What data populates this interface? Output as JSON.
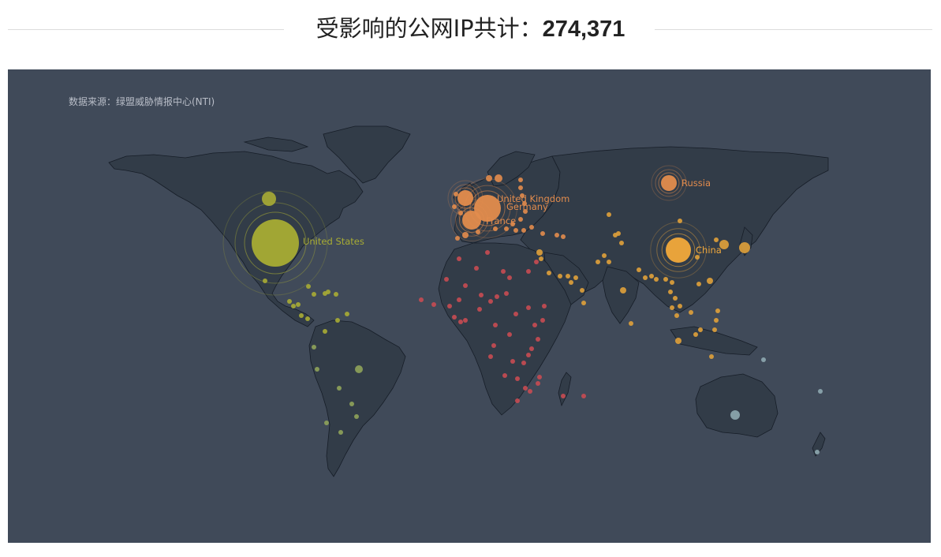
{
  "header": {
    "label": "受影响的公网IP共计：",
    "count": "274,371"
  },
  "map": {
    "source_text": "数据来源：绿盟威胁情报中心(NTI)",
    "background_color": "#404a59",
    "land_color": "#323c48",
    "highlighted_countries": [
      {
        "name": "United States",
        "label": "United States",
        "color": "#a8ac34",
        "size": 30,
        "ripple": true
      },
      {
        "name": "United Kingdom",
        "label": "United Kingdom",
        "color": "#e38c4d",
        "size": 10,
        "ripple": true
      },
      {
        "name": "Germany",
        "label": "Germany",
        "color": "#e38c4d",
        "size": 17,
        "ripple": true
      },
      {
        "name": "France",
        "label": "France",
        "color": "#e38c4d",
        "size": 12,
        "ripple": true
      },
      {
        "name": "Russia",
        "label": "Russia",
        "color": "#e38c4d",
        "size": 10,
        "ripple": true
      },
      {
        "name": "China",
        "label": "China",
        "color": "#f2a93b",
        "size": 16,
        "ripple": true
      }
    ]
  }
}
